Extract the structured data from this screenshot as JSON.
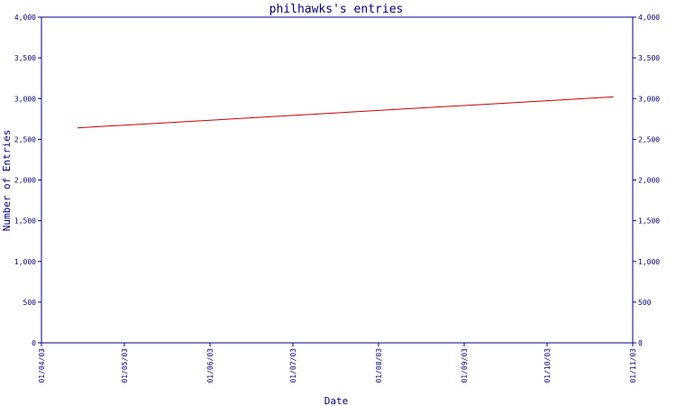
{
  "chart_data": {
    "type": "line",
    "title": "philhawks's entries",
    "xlabel": "Date",
    "ylabel": "Number of Entries",
    "x_tick_labels": [
      "01/04/03",
      "01/05/03",
      "01/06/03",
      "01/07/03",
      "01/08/03",
      "01/09/03",
      "01/10/03",
      "01/11/03"
    ],
    "y_tick_labels": [
      "0",
      "500",
      "1,000",
      "1,500",
      "2,000",
      "2,500",
      "3,000",
      "3,500",
      "4,000"
    ],
    "ylim": [
      0,
      4000
    ],
    "xlim": [
      "2003-04-01",
      "2003-11-01"
    ],
    "y_ticks": [
      0,
      500,
      1000,
      1500,
      2000,
      2500,
      3000,
      3500,
      4000
    ],
    "x_ticks": [
      "2003-04-01",
      "2003-05-01",
      "2003-06-01",
      "2003-07-01",
      "2003-08-01",
      "2003-09-01",
      "2003-10-01",
      "2003-11-01"
    ],
    "series": [
      {
        "color": "#cc0000",
        "points": [
          {
            "x": "2003-04-14",
            "y": 2640
          },
          {
            "x": "2003-10-25",
            "y": 3020
          }
        ]
      }
    ],
    "grid": false,
    "colors": {
      "axis": "#000080",
      "text": "#000080",
      "line": "#cc0000"
    }
  }
}
